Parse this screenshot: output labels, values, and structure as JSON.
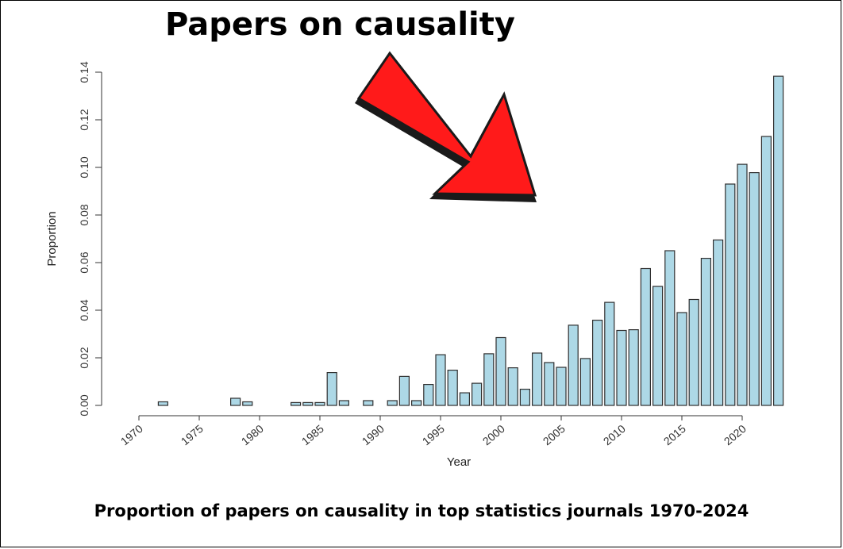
{
  "headline": "Papers on causality",
  "caption": "Proportion of papers on causality in top statistics journals 1970-2024",
  "colors": {
    "bar_fill": "#add8e6",
    "bar_stroke": "#2f2f2f",
    "arrow_fill": "#ff1a1a",
    "arrow_shadow": "#1a1a1a",
    "axis": "#333333"
  },
  "chart_data": {
    "type": "bar",
    "title": "Papers on causality",
    "xlabel": "Year",
    "ylabel": "Proportion",
    "ylim": [
      0,
      0.14
    ],
    "y_ticks": [
      "0.00",
      "0.02",
      "0.04",
      "0.06",
      "0.08",
      "0.10",
      "0.12",
      "0.14"
    ],
    "x_tick_labels": [
      "1970",
      "1975",
      "1980",
      "1985",
      "1990",
      "1995",
      "2000",
      "2005",
      "2010",
      "2015",
      "2020"
    ],
    "categories": [
      "1970",
      "1971",
      "1972",
      "1973",
      "1974",
      "1975",
      "1976",
      "1977",
      "1978",
      "1979",
      "1980",
      "1981",
      "1982",
      "1983",
      "1984",
      "1985",
      "1986",
      "1987",
      "1988",
      "1989",
      "1990",
      "1991",
      "1992",
      "1993",
      "1994",
      "1995",
      "1996",
      "1997",
      "1998",
      "1999",
      "2000",
      "2001",
      "2002",
      "2003",
      "2004",
      "2005",
      "2006",
      "2007",
      "2008",
      "2009",
      "2010",
      "2011",
      "2012",
      "2013",
      "2014",
      "2015",
      "2016",
      "2017",
      "2018",
      "2019",
      "2020",
      "2021",
      "2022",
      "2023"
    ],
    "values": [
      0,
      0,
      0.0015,
      0,
      0,
      0,
      0,
      0,
      0.003,
      0.0015,
      0,
      0,
      0,
      0.0012,
      0.0012,
      0.0012,
      0.0138,
      0.002,
      0,
      0.002,
      0,
      0.002,
      0.0122,
      0.002,
      0.0088,
      0.0213,
      0.0148,
      0.0053,
      0.0093,
      0.0217,
      0.0285,
      0.0158,
      0.0068,
      0.022,
      0.018,
      0.016,
      0.0337,
      0.0197,
      0.0358,
      0.0433,
      0.0315,
      0.0318,
      0.0575,
      0.05,
      0.065,
      0.039,
      0.0445,
      0.0618,
      0.0695,
      0.093,
      0.1013,
      0.0978,
      0.113,
      0.1383
    ],
    "grid": false,
    "legend": "none"
  }
}
